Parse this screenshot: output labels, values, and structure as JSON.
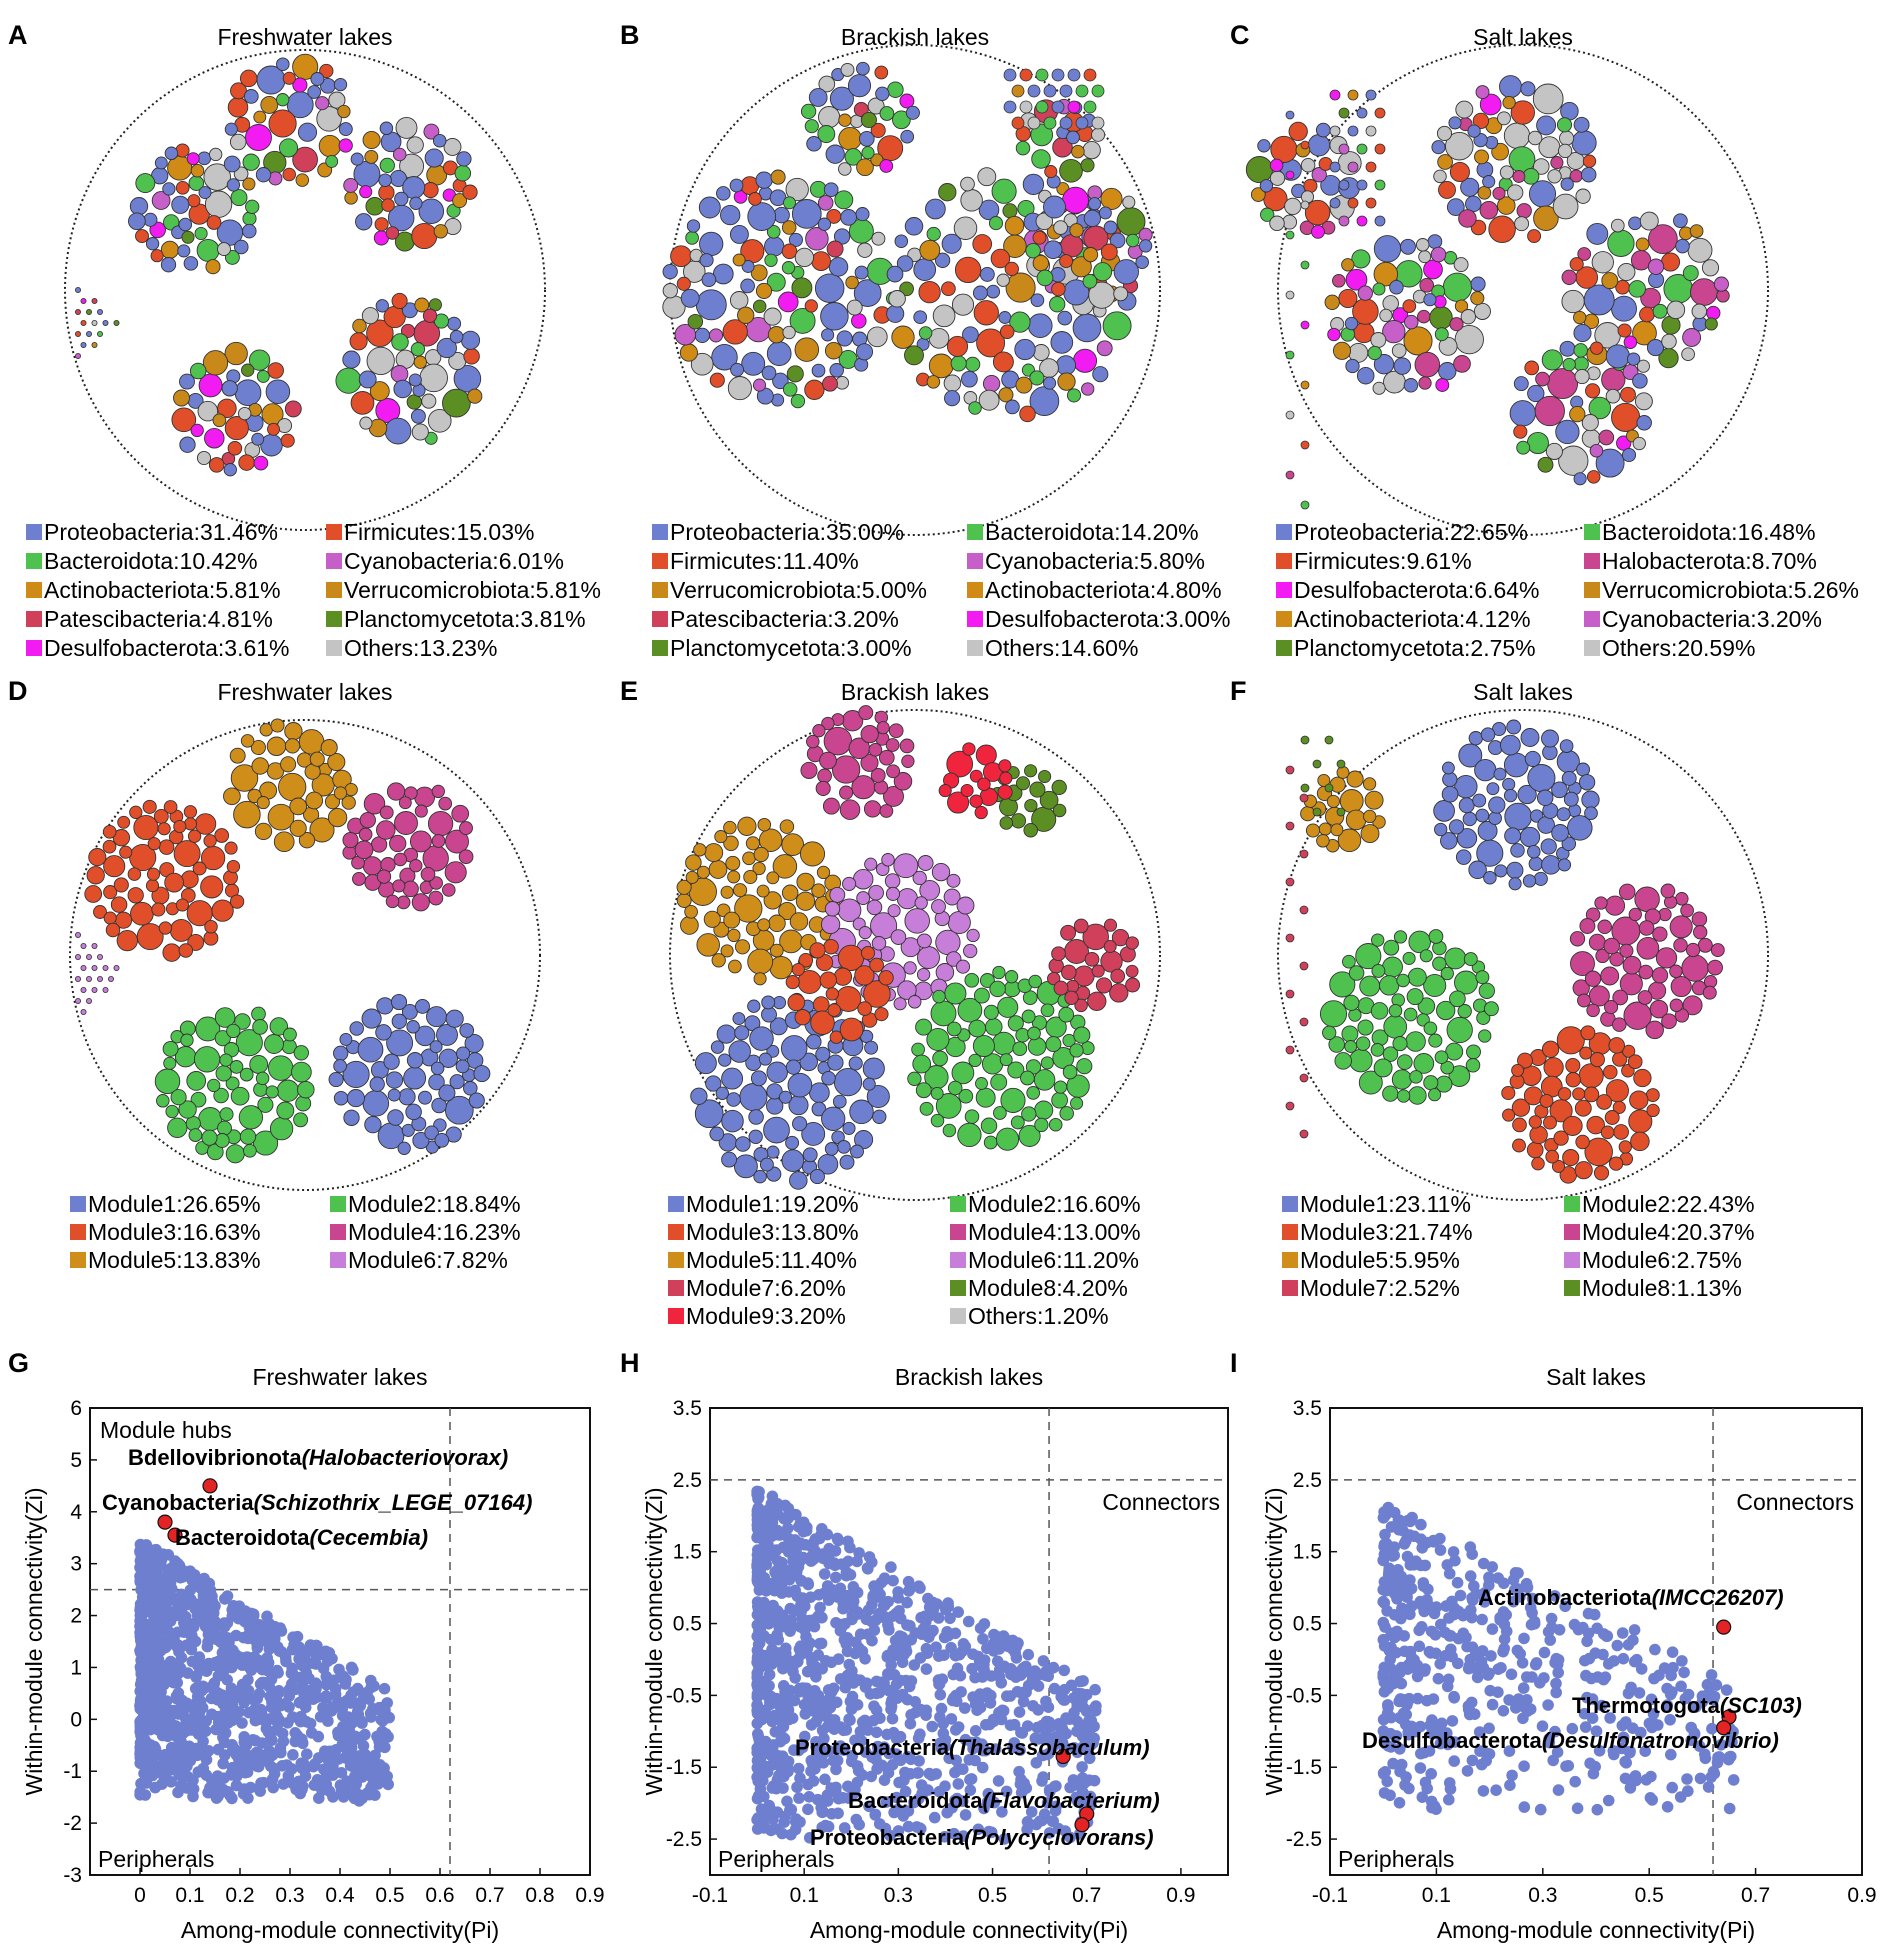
{
  "panel_letters": [
    "A",
    "B",
    "C",
    "D",
    "E",
    "F",
    "G",
    "H",
    "I"
  ],
  "colors": {
    "Proteobacteria": "#6f7fcf",
    "Bacteroidota": "#4fc14f",
    "Firmicutes": "#e04e2a",
    "Actinobacteriota": "#d08a16",
    "Cyanobacteria": "#c75fc9",
    "Verrucomicrobiota": "#c9881a",
    "Patescibacteria": "#d1405a",
    "Desulfobacterota": "#f21bf2",
    "Planctomycetota": "#5c8f23",
    "Halobacterota": "#c9458f",
    "Others": "#c4c4c4",
    "Module1": "#6f7fcf",
    "Module2": "#4fc14f",
    "Module3": "#e04e2a",
    "Module4": "#c9458f",
    "Module5": "#cf8d1a",
    "Module6": "#c77ed9",
    "Module7": "#d1405a",
    "Module8": "#5c8f23",
    "Module9": "#f0243c",
    "point": "#6f7fcf",
    "highlight": "#e42424"
  },
  "networks_phylum": [
    {
      "title": "Freshwater lakes",
      "legend": [
        {
          "key": "Proteobacteria",
          "label": "Proteobacteria:31.46%"
        },
        {
          "key": "Firmicutes",
          "label": "Firmicutes:15.03%"
        },
        {
          "key": "Bacteroidota",
          "label": "Bacteroidota:10.42%"
        },
        {
          "key": "Cyanobacteria",
          "label": "Cyanobacteria:6.01%"
        },
        {
          "key": "Actinobacteriota",
          "label": "Actinobacteriota:5.81%"
        },
        {
          "key": "Verrucomicrobiota",
          "label": "Verrucomicrobiota:5.81%"
        },
        {
          "key": "Patescibacteria",
          "label": "Patescibacteria:4.81%"
        },
        {
          "key": "Planctomycetota",
          "label": "Planctomycetota:3.81%"
        },
        {
          "key": "Desulfobacterota",
          "label": "Desulfobacterota:3.61%"
        },
        {
          "key": "Others",
          "label": "Others:13.23%"
        }
      ]
    },
    {
      "title": "Brackish lakes",
      "legend": [
        {
          "key": "Proteobacteria",
          "label": "Proteobacteria:35.00%"
        },
        {
          "key": "Bacteroidota",
          "label": "Bacteroidota:14.20%"
        },
        {
          "key": "Firmicutes",
          "label": "Firmicutes:11.40%"
        },
        {
          "key": "Cyanobacteria",
          "label": "Cyanobacteria:5.80%"
        },
        {
          "key": "Verrucomicrobiota",
          "label": "Verrucomicrobiota:5.00%"
        },
        {
          "key": "Actinobacteriota",
          "label": "Actinobacteriota:4.80%"
        },
        {
          "key": "Patescibacteria",
          "label": "Patescibacteria:3.20%"
        },
        {
          "key": "Desulfobacterota",
          "label": "Desulfobacterota:3.00%"
        },
        {
          "key": "Planctomycetota",
          "label": "Planctomycetota:3.00%"
        },
        {
          "key": "Others",
          "label": "Others:14.60%"
        }
      ]
    },
    {
      "title": "Salt lakes",
      "legend": [
        {
          "key": "Proteobacteria",
          "label": "Proteobacteria:22.65%"
        },
        {
          "key": "Bacteroidota",
          "label": "Bacteroidota:16.48%"
        },
        {
          "key": "Firmicutes",
          "label": "Firmicutes:9.61%"
        },
        {
          "key": "Halobacterota",
          "label": "Halobacterota:8.70%"
        },
        {
          "key": "Desulfobacterota",
          "label": "Desulfobacterota:6.64%"
        },
        {
          "key": "Verrucomicrobiota",
          "label": "Verrucomicrobiota:5.26%"
        },
        {
          "key": "Actinobacteriota",
          "label": "Actinobacteriota:4.12%"
        },
        {
          "key": "Cyanobacteria",
          "label": "Cyanobacteria:3.20%"
        },
        {
          "key": "Planctomycetota",
          "label": "Planctomycetota:2.75%"
        },
        {
          "key": "Others",
          "label": "Others:20.59%"
        }
      ]
    }
  ],
  "networks_module": [
    {
      "title": "Freshwater lakes",
      "legend": [
        {
          "key": "Module1",
          "label": "Module1:26.65%"
        },
        {
          "key": "Module2",
          "label": "Module2:18.84%"
        },
        {
          "key": "Module3",
          "label": "Module3:16.63%"
        },
        {
          "key": "Module4",
          "label": "Module4:16.23%"
        },
        {
          "key": "Module5",
          "label": "Module5:13.83%"
        },
        {
          "key": "Module6",
          "label": "Module6:7.82%"
        }
      ]
    },
    {
      "title": "Brackish lakes",
      "legend": [
        {
          "key": "Module1",
          "label": "Module1:19.20%"
        },
        {
          "key": "Module2",
          "label": "Module2:16.60%"
        },
        {
          "key": "Module3",
          "label": "Module3:13.80%"
        },
        {
          "key": "Module4",
          "label": "Module4:13.00%"
        },
        {
          "key": "Module5",
          "label": "Module5:11.40%"
        },
        {
          "key": "Module6",
          "label": "Module6:11.20%"
        },
        {
          "key": "Module7",
          "label": "Module7:6.20%"
        },
        {
          "key": "Module8",
          "label": "Module8:4.20%"
        },
        {
          "key": "Module9",
          "label": "Module9:3.20%"
        },
        {
          "key": "Others",
          "label": "Others:1.20%"
        }
      ]
    },
    {
      "title": "Salt lakes",
      "legend": [
        {
          "key": "Module1",
          "label": "Module1:23.11%"
        },
        {
          "key": "Module2",
          "label": "Module2:22.43%"
        },
        {
          "key": "Module3",
          "label": "Module3:21.74%"
        },
        {
          "key": "Module4",
          "label": "Module4:20.37%"
        },
        {
          "key": "Module5",
          "label": "Module5:5.95%"
        },
        {
          "key": "Module6",
          "label": "Module6:2.75%"
        },
        {
          "key": "Module7",
          "label": "Module7:2.52%"
        },
        {
          "key": "Module8",
          "label": "Module8:1.13%"
        }
      ]
    }
  ],
  "chart_data": [
    {
      "type": "scatter",
      "title": "Freshwater lakes",
      "xlabel": "Among-module connectivity(Pi)",
      "ylabel": "Within-module connectivity(Zi)",
      "xlim": [
        -0.1,
        0.9
      ],
      "ylim": [
        -3,
        6
      ],
      "xticks": [
        0,
        0.1,
        0.2,
        0.3,
        0.4,
        0.5,
        0.6,
        0.7,
        0.8,
        0.9
      ],
      "xtick_labels": [
        "0",
        "0.1",
        "0.2",
        "0.3",
        "0.4",
        "0.5",
        "0.6",
        "0.7",
        "0.8",
        "0.9"
      ],
      "yticks": [
        -3,
        -2,
        -1,
        0,
        1,
        2,
        3,
        4,
        5,
        6
      ],
      "ytick_labels": [
        "-3",
        "-2",
        "-1",
        "0",
        "1",
        "2",
        "3",
        "4",
        "5",
        "6"
      ],
      "thresholds": {
        "pi": 0.62,
        "zi": 2.5
      },
      "region_labels": [
        {
          "text": "Module hubs",
          "position": "top-left"
        },
        {
          "text": "Peripherals",
          "position": "bottom-left"
        }
      ],
      "highlights": [
        {
          "phylum": "Bdellovibrionota",
          "genus": "(Halobacteriovorax)",
          "x": 0.14,
          "y": 4.5
        },
        {
          "phylum": "Cyanobacteria",
          "genus": "(Schizothrix_LEGE_07164)",
          "x": 0.05,
          "y": 3.8
        },
        {
          "phylum": "Bacteroidota",
          "genus": "(Cecembia)",
          "x": 0.07,
          "y": 3.55
        }
      ],
      "point_cloud": {
        "n": 1100,
        "pi_range": [
          0,
          0.5
        ],
        "zi_range": [
          -1.8,
          3.5
        ],
        "note": "approximate distribution"
      }
    },
    {
      "type": "scatter",
      "title": "Brackish lakes",
      "xlabel": "Among-module connectivity(Pi)",
      "ylabel": "Within-module connectivity(Zi)",
      "xlim": [
        -0.1,
        1.0
      ],
      "ylim": [
        -3,
        3.5
      ],
      "xticks": [
        -0.1,
        0.1,
        0.3,
        0.5,
        0.7,
        0.9
      ],
      "xtick_labels": [
        "-0.1",
        "0.1",
        "0.3",
        "0.5",
        "0.7",
        "0.9"
      ],
      "yticks": [
        -2.5,
        -1.5,
        -0.5,
        0.5,
        1.5,
        2.5,
        3.5
      ],
      "ytick_labels": [
        "-2.5",
        "-1.5",
        "-0.5",
        "0.5",
        "1.5",
        "2.5",
        "3.5"
      ],
      "thresholds": {
        "pi": 0.62,
        "zi": 2.5
      },
      "region_labels": [
        {
          "text": "Connectors",
          "position": "top-right"
        },
        {
          "text": "Peripherals",
          "position": "bottom-left"
        }
      ],
      "highlights": [
        {
          "phylum": "Proteobacteria",
          "genus": "(Thalassobaculum)",
          "x": 0.65,
          "y": -1.35
        },
        {
          "phylum": "Bacteroidota",
          "genus": "(Flavobacterium)",
          "x": 0.7,
          "y": -2.15
        },
        {
          "phylum": "Proteobacteria",
          "genus": "(Polycyclovorans)",
          "x": 0.69,
          "y": -2.3
        }
      ],
      "point_cloud": {
        "n": 1100,
        "pi_range": [
          0,
          0.72
        ],
        "zi_range": [
          -2.7,
          2.4
        ],
        "note": "approximate distribution"
      }
    },
    {
      "type": "scatter",
      "title": "Salt lakes",
      "xlabel": "Among-module connectivity(Pi)",
      "ylabel": "Within-module connectivity(Zi)",
      "xlim": [
        -0.1,
        0.9
      ],
      "ylim": [
        -3,
        3.5
      ],
      "xticks": [
        -0.1,
        0.1,
        0.3,
        0.5,
        0.7,
        0.9
      ],
      "xtick_labels": [
        "-0.1",
        "0.1",
        "0.3",
        "0.5",
        "0.7",
        "0.9"
      ],
      "yticks": [
        -2.5,
        -1.5,
        -0.5,
        0.5,
        1.5,
        2.5,
        3.5
      ],
      "ytick_labels": [
        "-2.5",
        "-1.5",
        "-0.5",
        "0.5",
        "1.5",
        "2.5",
        "3.5"
      ],
      "thresholds": {
        "pi": 0.62,
        "zi": 2.5
      },
      "region_labels": [
        {
          "text": "Connectors",
          "position": "top-right"
        },
        {
          "text": "Peripherals",
          "position": "bottom-left"
        }
      ],
      "highlights": [
        {
          "phylum": "Actinobacteriota",
          "genus": "(IMCC26207)",
          "x": 0.64,
          "y": 0.45
        },
        {
          "phylum": "Thermotogota",
          "genus": "(SC103)",
          "x": 0.65,
          "y": -0.8
        },
        {
          "phylum": "Desulfobacterota",
          "genus": "(Desulfonatronovibrio)",
          "x": 0.64,
          "y": -0.95
        }
      ],
      "point_cloud": {
        "n": 520,
        "pi_range": [
          0,
          0.66
        ],
        "zi_range": [
          -2.3,
          2.2
        ],
        "note": "approximate distribution"
      }
    }
  ]
}
